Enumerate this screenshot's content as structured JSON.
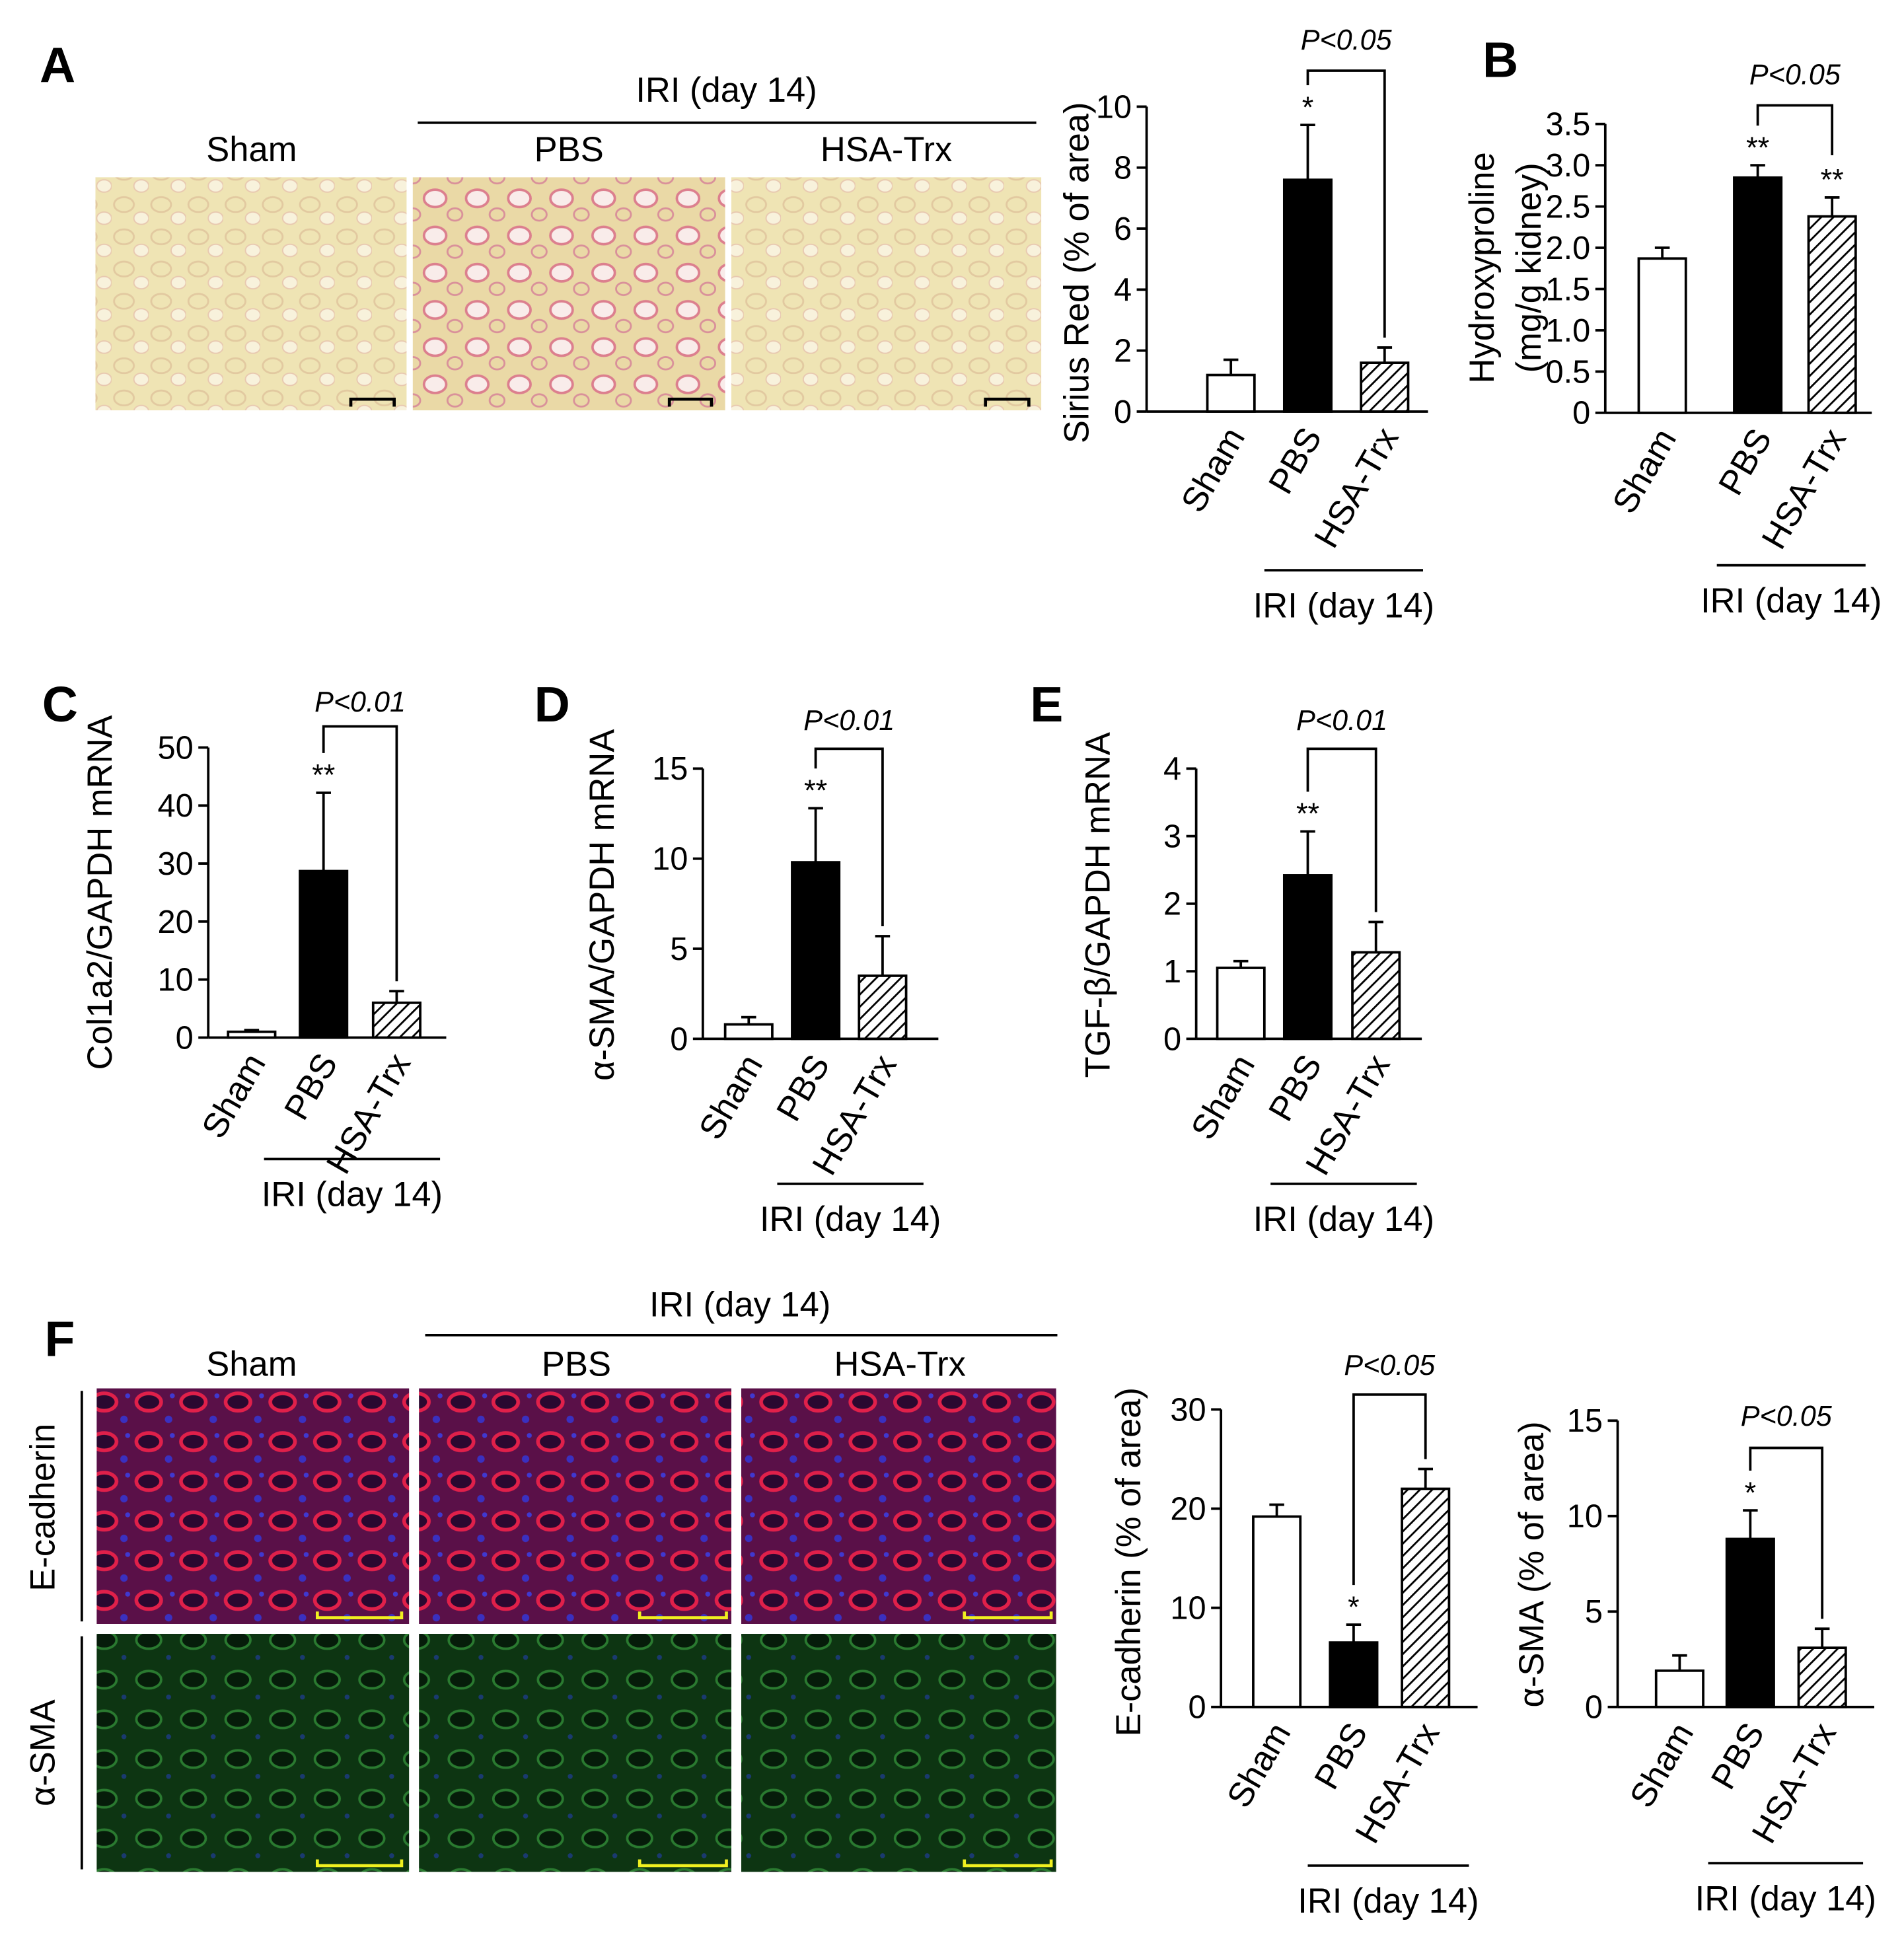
{
  "figure": {
    "panels": [
      "A",
      "B",
      "C",
      "D",
      "E",
      "F"
    ],
    "histology_a": {
      "group": "IRI (day 14)",
      "columns": [
        "Sham",
        "PBS",
        "HSA-Trx"
      ]
    },
    "histology_f": {
      "group": "IRI (day 14)",
      "columns": [
        "Sham",
        "PBS",
        "HSA-Trx"
      ],
      "rows": [
        "E-cadherin",
        "α-SMA"
      ]
    }
  },
  "chart_data": [
    {
      "type": "bar",
      "ylabel": "Sirius Red (% of area)",
      "categories": [
        "Sham",
        "PBS",
        "HSA-Trx"
      ],
      "values": [
        1.2,
        7.6,
        1.6
      ],
      "errors": [
        0.5,
        1.8,
        0.5
      ],
      "colors": [
        "#ffffff",
        "#000000",
        "#ffffff"
      ],
      "hatched": [
        false,
        false,
        true
      ],
      "ylim": [
        0,
        10
      ],
      "yticks": [
        0,
        2,
        4,
        6,
        8,
        10
      ],
      "stars": [
        null,
        "*",
        null
      ],
      "comparison": "P<0.05",
      "group_label": "IRI (day 14)"
    },
    {
      "type": "bar",
      "ylabel": [
        "Hydroxyproline",
        "(mg/g kidney)"
      ],
      "categories": [
        "Sham",
        "PBS",
        "HSA-Trx"
      ],
      "values": [
        1.87,
        2.85,
        2.38
      ],
      "errors": [
        0.13,
        0.15,
        0.23
      ],
      "colors": [
        "#ffffff",
        "#000000",
        "#ffffff"
      ],
      "hatched": [
        false,
        false,
        true
      ],
      "ylim": [
        0,
        3.5
      ],
      "yticks": [
        0,
        0.5,
        {
          "value": 1,
          "label": "1.0"
        },
        1.5,
        {
          "value": 2,
          "label": "2.0"
        },
        2.5,
        {
          "value": 3,
          "label": "3.0"
        },
        3.5
      ],
      "stars": [
        null,
        "**",
        "**"
      ],
      "comparison": "P<0.05",
      "group_label": "IRI (day 14)"
    },
    {
      "type": "bar",
      "ylabel": "Col1a2/GAPDH mRNA",
      "categories": [
        "Sham",
        "PBS",
        "HSA-Trx"
      ],
      "values": [
        1,
        28.7,
        6
      ],
      "errors": [
        0.3,
        13.5,
        2
      ],
      "colors": [
        "#ffffff",
        "#000000",
        "#ffffff"
      ],
      "hatched": [
        false,
        false,
        true
      ],
      "ylim": [
        0,
        50
      ],
      "yticks": [
        0,
        10,
        20,
        30,
        40,
        50
      ],
      "stars": [
        null,
        "**",
        null
      ],
      "comparison": "P<0.01",
      "group_label": "IRI (day 14)"
    },
    {
      "type": "bar",
      "ylabel": "α-SMA/GAPDH mRNA",
      "categories": [
        "Sham",
        "PBS",
        "HSA-Trx"
      ],
      "values": [
        0.8,
        9.8,
        3.5
      ],
      "errors": [
        0.4,
        3,
        2.2
      ],
      "colors": [
        "#ffffff",
        "#000000",
        "#ffffff"
      ],
      "hatched": [
        false,
        false,
        true
      ],
      "ylim": [
        0,
        15
      ],
      "yticks": [
        0,
        5,
        10,
        15
      ],
      "stars": [
        null,
        "**",
        null
      ],
      "comparison": "P<0.01",
      "group_label": "IRI (day 14)"
    },
    {
      "type": "bar",
      "ylabel": "TGF-β/GAPDH mRNA",
      "categories": [
        "Sham",
        "PBS",
        "HSA-Trx"
      ],
      "values": [
        1.05,
        2.42,
        1.28
      ],
      "errors": [
        0.1,
        0.65,
        0.45
      ],
      "colors": [
        "#ffffff",
        "#000000",
        "#ffffff"
      ],
      "hatched": [
        false,
        false,
        true
      ],
      "ylim": [
        0,
        4
      ],
      "yticks": [
        0,
        1,
        2,
        3,
        4
      ],
      "stars": [
        null,
        "**",
        null
      ],
      "comparison": "P<0.01",
      "group_label": "IRI (day 14)"
    },
    {
      "type": "bar",
      "ylabel": "E-cadherin (% of area)",
      "categories": [
        "Sham",
        "PBS",
        "HSA-Trx"
      ],
      "values": [
        19.2,
        6.5,
        22
      ],
      "errors": [
        1.2,
        1.8,
        2
      ],
      "colors": [
        "#ffffff",
        "#000000",
        "#ffffff"
      ],
      "hatched": [
        false,
        false,
        true
      ],
      "ylim": [
        0,
        30
      ],
      "yticks": [
        0,
        10,
        20,
        30
      ],
      "stars": [
        null,
        "*",
        null
      ],
      "comparison": "P<0.05",
      "group_label": "IRI (day 14)"
    },
    {
      "type": "bar",
      "ylabel": "α-SMA (% of area)",
      "categories": [
        "Sham",
        "PBS",
        "HSA-Trx"
      ],
      "values": [
        1.9,
        8.8,
        3.1
      ],
      "errors": [
        0.8,
        1.5,
        1
      ],
      "colors": [
        "#ffffff",
        "#000000",
        "#ffffff"
      ],
      "hatched": [
        false,
        false,
        true
      ],
      "ylim": [
        0,
        15
      ],
      "yticks": [
        0,
        5,
        10,
        15
      ],
      "stars": [
        null,
        "*",
        null
      ],
      "comparison": "P<0.05",
      "group_label": "IRI (day 14)"
    }
  ]
}
